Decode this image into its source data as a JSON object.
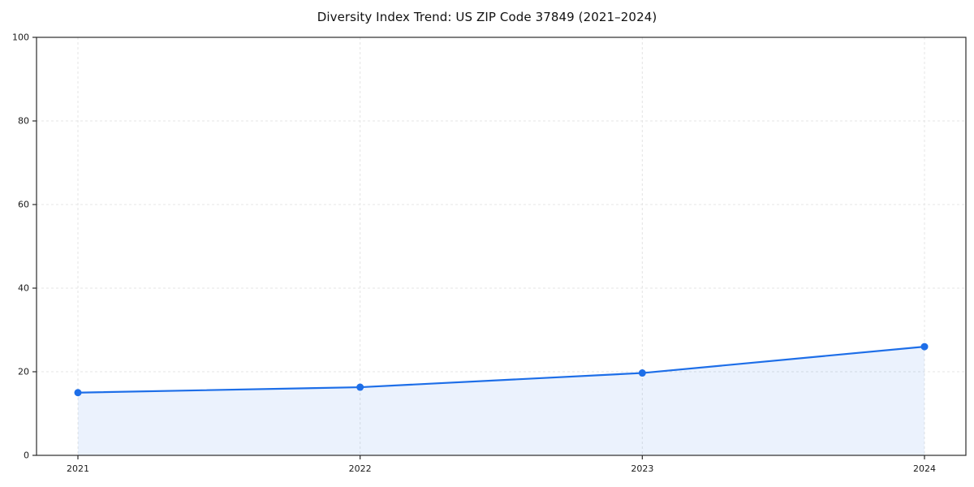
{
  "chart_data": {
    "type": "line",
    "title": "Diversity Index Trend: US ZIP Code 37849 (2021–2024)",
    "categories": [
      "2021",
      "2022",
      "2023",
      "2024"
    ],
    "series": [
      {
        "name": "Diversity Index",
        "values": [
          15.0,
          16.3,
          19.7,
          26.0
        ]
      }
    ],
    "xlabel": "",
    "ylabel": "",
    "ylim": [
      0,
      100
    ],
    "yticks": [
      0,
      20,
      40,
      60,
      80,
      100
    ],
    "grid": true,
    "grid_style": "dashed",
    "grid_color": "#e4e4e4",
    "line_color": "#1d6ee8",
    "marker_color": "#1d6ee8",
    "fill_color": "#1d6ee8",
    "fill_opacity": 0.09,
    "axis_color": "#2b2b2b",
    "tick_label_color": "#1a1a1a",
    "legend": "none"
  }
}
